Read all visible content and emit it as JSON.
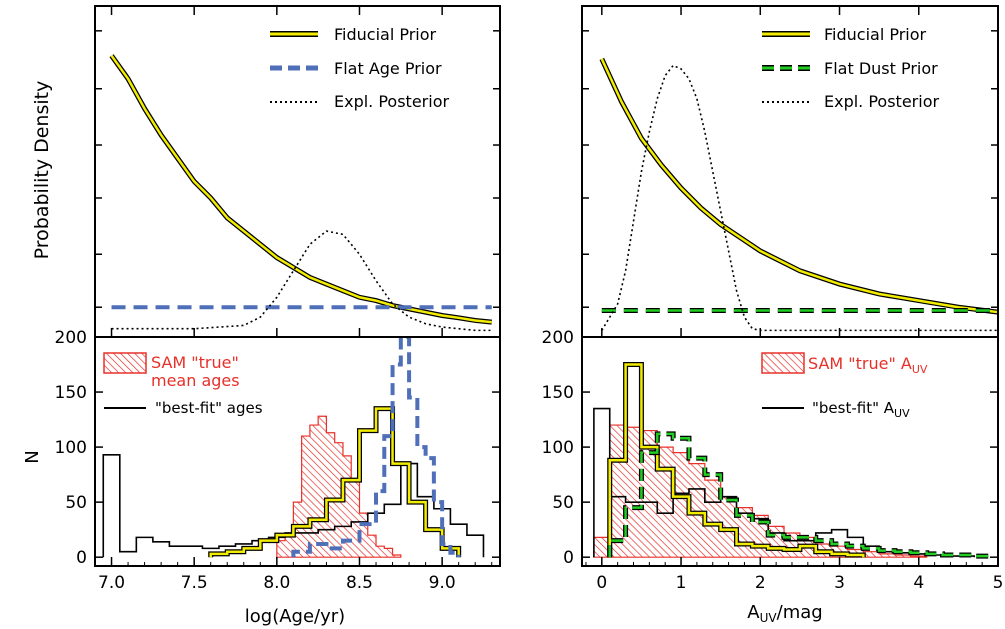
{
  "figure": {
    "ylabel_shared": "Probability Density"
  },
  "chart_data": [
    {
      "id": "top_left",
      "type": "line",
      "xlim": [
        6.9,
        9.35
      ],
      "ylim": [
        0,
        1
      ],
      "ylabel": "Probability Density",
      "legend_position": "top-right",
      "series": [
        {
          "name": "Fiducial Prior",
          "style": "yellow-black",
          "x": [
            7.0,
            7.1,
            7.2,
            7.3,
            7.4,
            7.5,
            7.6,
            7.7,
            7.8,
            7.9,
            8.0,
            8.1,
            8.2,
            8.3,
            8.4,
            8.5,
            8.6,
            8.7,
            8.8,
            8.9,
            9.0,
            9.1,
            9.2,
            9.3
          ],
          "y": [
            0.85,
            0.78,
            0.69,
            0.61,
            0.54,
            0.47,
            0.42,
            0.36,
            0.32,
            0.28,
            0.24,
            0.21,
            0.18,
            0.16,
            0.14,
            0.12,
            0.11,
            0.095,
            0.085,
            0.075,
            0.065,
            0.058,
            0.05,
            0.045
          ]
        },
        {
          "name": "Flat Age Prior",
          "style": "blue-dash",
          "x": [
            7.0,
            9.3
          ],
          "y": [
            0.09,
            0.09
          ]
        },
        {
          "name": "Expl. Posterior",
          "style": "dotted",
          "x": [
            7.0,
            7.5,
            7.8,
            7.9,
            8.0,
            8.1,
            8.2,
            8.3,
            8.4,
            8.5,
            8.6,
            8.7,
            8.8,
            8.9,
            9.0,
            9.1,
            9.2,
            9.3
          ],
          "y": [
            0.025,
            0.025,
            0.035,
            0.06,
            0.12,
            0.2,
            0.28,
            0.32,
            0.31,
            0.25,
            0.17,
            0.1,
            0.06,
            0.04,
            0.03,
            0.025,
            0.02,
            0.02
          ]
        }
      ]
    },
    {
      "id": "top_right",
      "type": "line",
      "xlim": [
        -0.25,
        5.0
      ],
      "ylim": [
        0,
        1
      ],
      "legend_position": "top-right",
      "series": [
        {
          "name": "Fiducial Prior",
          "style": "yellow-black",
          "x": [
            0,
            0.25,
            0.5,
            0.75,
            1.0,
            1.25,
            1.5,
            1.75,
            2.0,
            2.5,
            3.0,
            3.5,
            4.0,
            4.5,
            5.0
          ],
          "y": [
            0.84,
            0.71,
            0.6,
            0.52,
            0.45,
            0.39,
            0.34,
            0.3,
            0.26,
            0.2,
            0.16,
            0.13,
            0.11,
            0.09,
            0.075
          ]
        },
        {
          "name": "Flat Dust Prior",
          "style": "green-dash",
          "x": [
            0,
            5.0
          ],
          "y": [
            0.08,
            0.08
          ]
        },
        {
          "name": "Expl. Posterior",
          "style": "dotted",
          "x": [
            0,
            0.2,
            0.3,
            0.4,
            0.5,
            0.6,
            0.7,
            0.8,
            0.9,
            1.0,
            1.1,
            1.2,
            1.3,
            1.4,
            1.5,
            1.6,
            1.7,
            1.8,
            1.9,
            2.0,
            3.0,
            4.0,
            5.0
          ],
          "y": [
            0.02,
            0.1,
            0.2,
            0.35,
            0.5,
            0.62,
            0.72,
            0.79,
            0.82,
            0.81,
            0.78,
            0.72,
            0.62,
            0.5,
            0.38,
            0.26,
            0.14,
            0.06,
            0.025,
            0.02,
            0.02,
            0.02,
            0.02
          ]
        }
      ]
    },
    {
      "id": "bottom_left",
      "type": "histogram",
      "xlabel": "log(Age/yr)",
      "ylabel": "N",
      "xlim": [
        6.9,
        9.35
      ],
      "ylim": [
        -8,
        200
      ],
      "xticks": [
        7.0,
        7.5,
        8.0,
        8.5,
        9.0
      ],
      "xtick_labels": [
        "7.0",
        "7.5",
        "8.0",
        "8.5",
        "9.0"
      ],
      "yticks": [
        0,
        50,
        100,
        150,
        200
      ],
      "ytick_labels": [
        "0",
        "50",
        "100",
        "150",
        "200"
      ],
      "legend_position": "top-left",
      "legend": {
        "sam_line1": "SAM \"true\"",
        "sam_line2": "mean ages",
        "bestfit": "\"best-fit\" ages"
      },
      "series": [
        {
          "name": "SAM \"true\" mean ages",
          "style": "red-hatch",
          "edges": [
            8.0,
            8.05,
            8.1,
            8.15,
            8.2,
            8.25,
            8.3,
            8.35,
            8.4,
            8.45,
            8.5,
            8.55,
            8.6,
            8.65,
            8.7,
            8.75
          ],
          "values": [
            15,
            20,
            50,
            110,
            120,
            128,
            113,
            104,
            92,
            70,
            40,
            20,
            10,
            8,
            2
          ]
        },
        {
          "name": "\"best-fit\" ages",
          "style": "black-step",
          "edges": [
            6.95,
            7.05,
            7.15,
            7.25,
            7.35,
            7.45,
            7.55,
            7.65,
            7.75,
            7.85,
            7.95,
            8.05,
            8.15,
            8.25,
            8.35,
            8.45,
            8.55,
            8.65,
            8.75,
            8.85,
            8.95,
            9.05,
            9.15,
            9.25
          ],
          "values": [
            93,
            5,
            18,
            14,
            10,
            10,
            8,
            10,
            12,
            15,
            18,
            22,
            22,
            25,
            28,
            32,
            40,
            48,
            85,
            55,
            44,
            30,
            20
          ]
        },
        {
          "name": "Fiducial Prior",
          "style": "yellow-step",
          "edges": [
            7.6,
            7.7,
            7.8,
            7.9,
            8.0,
            8.1,
            8.2,
            8.3,
            8.4,
            8.5,
            8.6,
            8.7,
            8.8,
            8.9,
            9.0,
            9.1
          ],
          "values": [
            3,
            5,
            8,
            15,
            20,
            28,
            34,
            52,
            70,
            115,
            135,
            85,
            50,
            25,
            8
          ]
        },
        {
          "name": "Flat Age Prior",
          "style": "blue-step",
          "edges": [
            8.1,
            8.2,
            8.3,
            8.4,
            8.5,
            8.6,
            8.65,
            8.7,
            8.75,
            8.8,
            8.85,
            8.9,
            8.95,
            9.0,
            9.05,
            9.1
          ],
          "values": [
            5,
            12,
            8,
            15,
            30,
            60,
            110,
            175,
            200,
            145,
            100,
            90,
            50,
            12,
            4
          ]
        }
      ]
    },
    {
      "id": "bottom_right",
      "type": "histogram",
      "xlabel": "A_UV/mag",
      "ylabel": "",
      "xlim": [
        -0.25,
        5.0
      ],
      "ylim": [
        -8,
        200
      ],
      "xticks": [
        0,
        1,
        2,
        3,
        4,
        5
      ],
      "xtick_labels": [
        "0",
        "1",
        "2",
        "3",
        "4",
        "5"
      ],
      "yticks": [
        0,
        50,
        100,
        150,
        200
      ],
      "ytick_labels": [
        "0",
        "50",
        "100",
        "150",
        "200"
      ],
      "legend_position": "top-right",
      "legend": {
        "sam": "SAM \"true\" A",
        "bestfit": "\"best-fit\" A",
        "sub": "UV"
      },
      "series": [
        {
          "name": "SAM \"true\" A_UV",
          "style": "red-hatch",
          "edges": [
            -0.1,
            0.1,
            0.3,
            0.5,
            0.7,
            0.9,
            1.1,
            1.3,
            1.5,
            1.7,
            1.9,
            2.1,
            2.3,
            2.5,
            2.7,
            2.9,
            3.1,
            3.3,
            3.5,
            3.7,
            3.9,
            4.1
          ],
          "values": [
            18,
            120,
            118,
            115,
            100,
            95,
            85,
            70,
            55,
            45,
            38,
            28,
            22,
            18,
            12,
            10,
            7,
            5,
            3,
            2,
            1
          ]
        },
        {
          "name": "\"best-fit\" A_UV",
          "style": "black-step",
          "edges": [
            -0.1,
            0.1,
            0.3,
            0.5,
            0.7,
            0.9,
            1.1,
            1.3,
            1.5,
            1.7,
            1.9,
            2.1,
            2.3,
            2.5,
            2.7,
            2.9,
            3.1,
            3.3,
            3.5,
            3.7,
            3.9,
            4.1,
            4.3,
            4.5,
            4.7
          ],
          "values": [
            135,
            55,
            50,
            50,
            40,
            58,
            62,
            50,
            55,
            40,
            35,
            22,
            15,
            15,
            22,
            25,
            18,
            10,
            5,
            4,
            3,
            2,
            1,
            1
          ]
        },
        {
          "name": "Fiducial Prior",
          "style": "yellow-step",
          "edges": [
            0.1,
            0.3,
            0.5,
            0.7,
            0.9,
            1.1,
            1.3,
            1.5,
            1.7,
            1.9,
            2.1,
            2.3,
            2.5,
            2.7,
            2.9,
            3.1,
            3.3
          ],
          "values": [
            88,
            175,
            100,
            80,
            55,
            40,
            30,
            25,
            12,
            10,
            8,
            7,
            10,
            5,
            3,
            2
          ]
        },
        {
          "name": "Flat Dust Prior",
          "style": "green-step",
          "edges": [
            0.1,
            0.3,
            0.5,
            0.7,
            0.9,
            1.1,
            1.3,
            1.5,
            1.7,
            1.9,
            2.1,
            2.3,
            2.5,
            2.7,
            2.9,
            3.1,
            3.3,
            3.5,
            3.7,
            3.9,
            4.1,
            4.3,
            4.5,
            4.7,
            4.9
          ],
          "values": [
            15,
            45,
            95,
            112,
            108,
            90,
            75,
            52,
            38,
            32,
            20,
            18,
            18,
            15,
            12,
            10,
            8,
            6,
            5,
            4,
            3,
            2,
            2,
            1
          ]
        }
      ]
    }
  ],
  "legends": {
    "top_left": [
      "Fiducial Prior",
      "Flat Age Prior",
      "Expl. Posterior"
    ],
    "top_right": [
      "Fiducial Prior",
      "Flat Dust Prior",
      "Expl. Posterior"
    ]
  },
  "colors": {
    "yellow": "#f2ec00",
    "blue": "#4f6fb8",
    "green": "#22cc22",
    "red": "#e8302a",
    "black": "#000000"
  }
}
